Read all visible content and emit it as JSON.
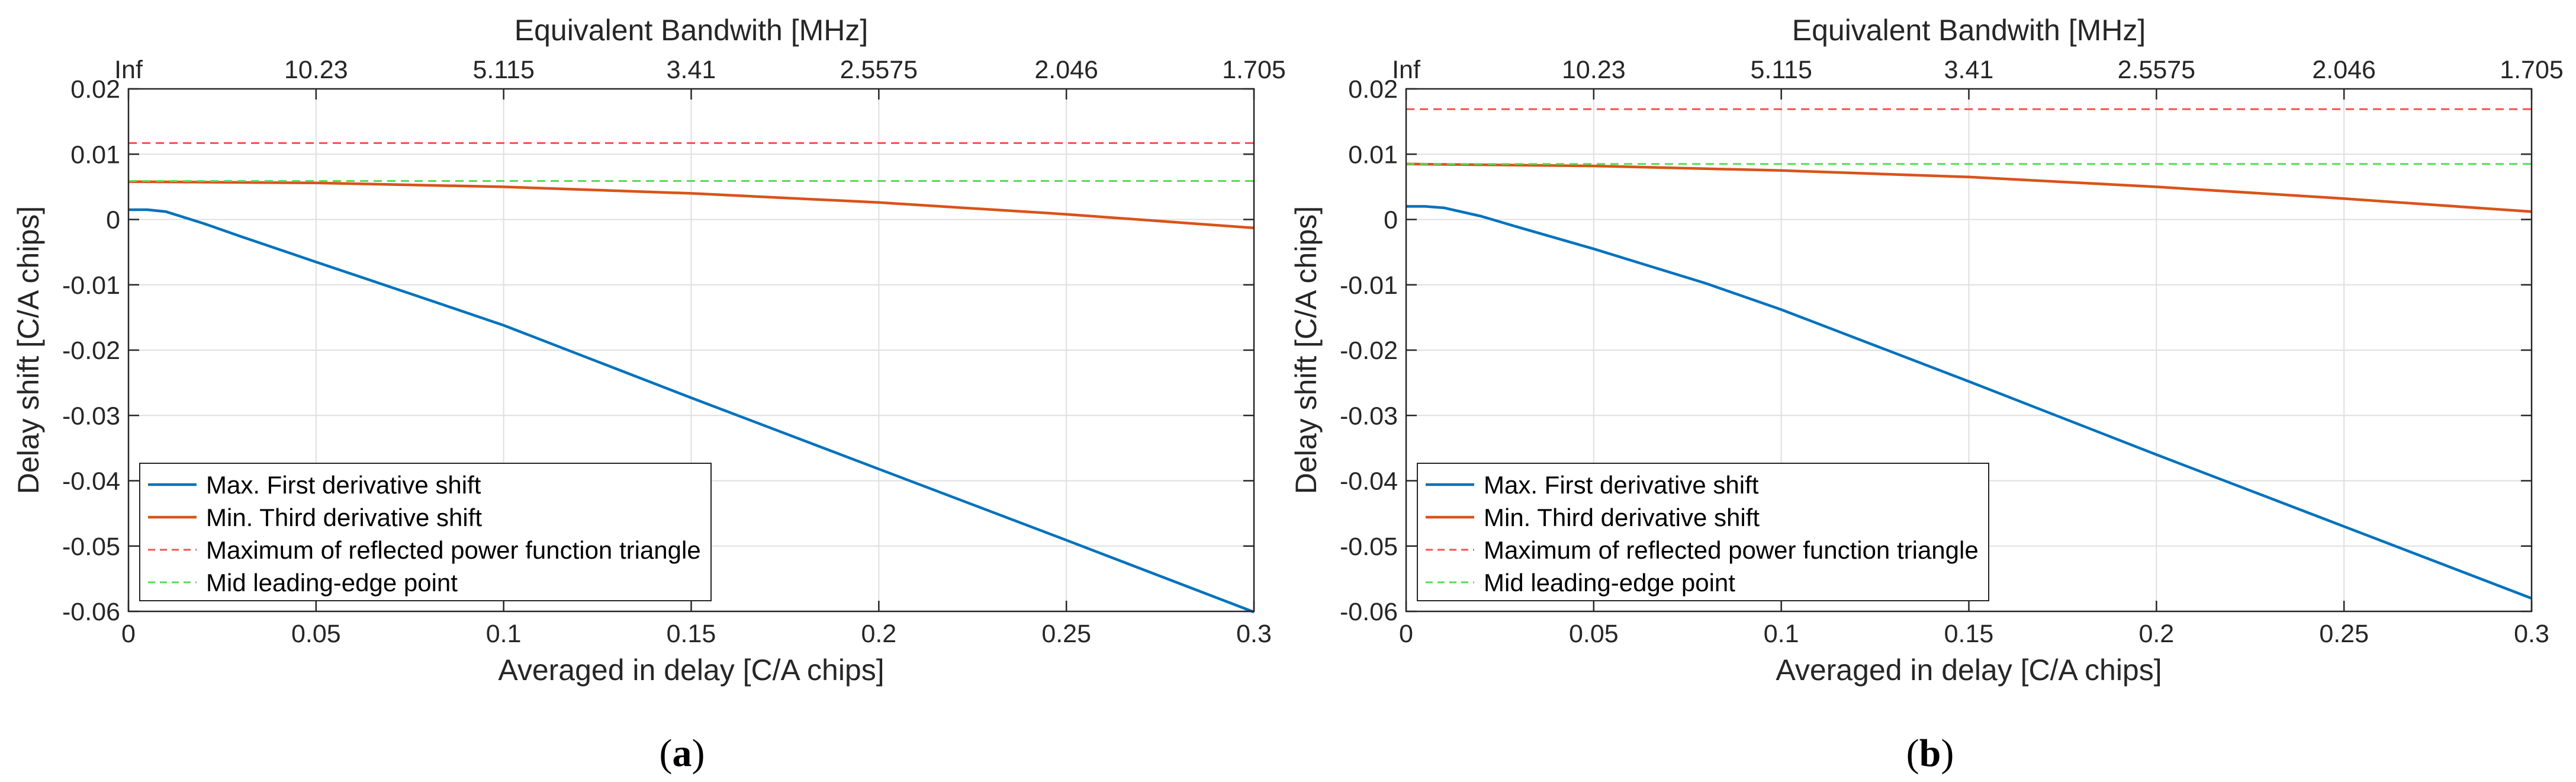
{
  "colors": {
    "first_derivative": "#0072BD",
    "third_derivative": "#D95319",
    "reflected_triangle": "#FF4F4F",
    "mid_leading_edge": "#55DD55",
    "grid": "#DFDFDF",
    "axes": "#262626"
  },
  "chart_data": [
    {
      "panel": "a",
      "caption": {
        "open": "(",
        "letter": "a",
        "close": ")"
      },
      "type": "line",
      "title": "",
      "xlabel": "Averaged in delay  [C/A chips]",
      "ylabel": "Delay shift [C/A chips]",
      "top_xlabel": "Equivalent Bandwith [MHz]",
      "xlim": [
        0,
        0.3
      ],
      "ylim": [
        -0.06,
        0.02
      ],
      "x_ticks": [
        0,
        0.05,
        0.1,
        0.15,
        0.2,
        0.25,
        0.3
      ],
      "x_tick_labels": [
        "0",
        "0.05",
        "0.1",
        "0.15",
        "0.2",
        "0.25",
        "0.3"
      ],
      "y_ticks": [
        -0.06,
        -0.05,
        -0.04,
        -0.03,
        -0.02,
        -0.01,
        0,
        0.01,
        0.02
      ],
      "y_tick_labels": [
        "-0.06",
        "-0.05",
        "-0.04",
        "-0.03",
        "-0.02",
        "-0.01",
        "0",
        "0.01",
        "0.02"
      ],
      "top_ticks": [
        0,
        0.05,
        0.1,
        0.15,
        0.2,
        0.25,
        0.3
      ],
      "top_tick_labels": [
        "Inf",
        "10.23",
        "5.115",
        "3.41",
        "2.5575",
        "2.046",
        "1.705"
      ],
      "grid": true,
      "legend_position": "bottom-left",
      "series": [
        {
          "name": "Max. First derivative shift",
          "style": "solid",
          "color_key": "first_derivative",
          "x": [
            0,
            0.005,
            0.01,
            0.02,
            0.03,
            0.05,
            0.08,
            0.1,
            0.15,
            0.2,
            0.25,
            0.3
          ],
          "y": [
            0.0015,
            0.0015,
            0.0012,
            -0.0006,
            -0.0026,
            -0.0065,
            -0.0123,
            -0.0162,
            -0.0273,
            -0.0382,
            -0.0491,
            -0.0601
          ]
        },
        {
          "name": "Min. Third derivative shift",
          "style": "solid",
          "color_key": "third_derivative",
          "x": [
            0,
            0.05,
            0.1,
            0.15,
            0.2,
            0.25,
            0.3
          ],
          "y": [
            0.0058,
            0.0056,
            0.005,
            0.004,
            0.0026,
            0.0008,
            -0.0013
          ]
        },
        {
          "name": "Maximum of reflected power function triangle",
          "style": "dashed",
          "color_key": "reflected_triangle",
          "x": [
            0,
            0.3
          ],
          "y": [
            0.0117,
            0.0117
          ]
        },
        {
          "name": "Mid leading-edge point",
          "style": "dashed",
          "color_key": "mid_leading_edge",
          "x": [
            0,
            0.3
          ],
          "y": [
            0.0059,
            0.0059
          ]
        }
      ]
    },
    {
      "panel": "b",
      "caption": {
        "open": "(",
        "letter": "b",
        "close": ")"
      },
      "type": "line",
      "title": "",
      "xlabel": "Averaged in delay  [C/A chips]",
      "ylabel": "Delay shift [C/A chips]",
      "top_xlabel": "Equivalent Bandwith [MHz]",
      "xlim": [
        0,
        0.3
      ],
      "ylim": [
        -0.06,
        0.02
      ],
      "x_ticks": [
        0,
        0.05,
        0.1,
        0.15,
        0.2,
        0.25,
        0.3
      ],
      "x_tick_labels": [
        "0",
        "0.05",
        "0.1",
        "0.15",
        "0.2",
        "0.25",
        "0.3"
      ],
      "y_ticks": [
        -0.06,
        -0.05,
        -0.04,
        -0.03,
        -0.02,
        -0.01,
        0,
        0.01,
        0.02
      ],
      "y_tick_labels": [
        "-0.06",
        "-0.05",
        "-0.04",
        "-0.03",
        "-0.02",
        "-0.01",
        "0",
        "0.01",
        "0.02"
      ],
      "top_ticks": [
        0,
        0.05,
        0.1,
        0.15,
        0.2,
        0.25,
        0.3
      ],
      "top_tick_labels": [
        "Inf",
        "10.23",
        "5.115",
        "3.41",
        "2.5575",
        "2.046",
        "1.705"
      ],
      "grid": true,
      "legend_position": "bottom-left",
      "series": [
        {
          "name": "Max. First derivative shift",
          "style": "solid",
          "color_key": "first_derivative",
          "x": [
            0,
            0.005,
            0.01,
            0.02,
            0.03,
            0.05,
            0.08,
            0.1,
            0.15,
            0.2,
            0.25,
            0.3
          ],
          "y": [
            0.002,
            0.002,
            0.0018,
            0.0005,
            -0.0012,
            -0.0045,
            -0.0098,
            -0.0138,
            -0.0248,
            -0.036,
            -0.047,
            -0.058
          ]
        },
        {
          "name": "Min. Third derivative shift",
          "style": "solid",
          "color_key": "third_derivative",
          "x": [
            0,
            0.05,
            0.1,
            0.15,
            0.2,
            0.25,
            0.3
          ],
          "y": [
            0.0085,
            0.0082,
            0.0075,
            0.0065,
            0.005,
            0.0032,
            0.0012
          ]
        },
        {
          "name": "Maximum of reflected power function triangle",
          "style": "dashed",
          "color_key": "reflected_triangle",
          "x": [
            0,
            0.3
          ],
          "y": [
            0.0169,
            0.0169
          ]
        },
        {
          "name": "Mid leading-edge point",
          "style": "dashed",
          "color_key": "mid_leading_edge",
          "x": [
            0,
            0.3
          ],
          "y": [
            0.0085,
            0.0085
          ]
        }
      ]
    }
  ]
}
